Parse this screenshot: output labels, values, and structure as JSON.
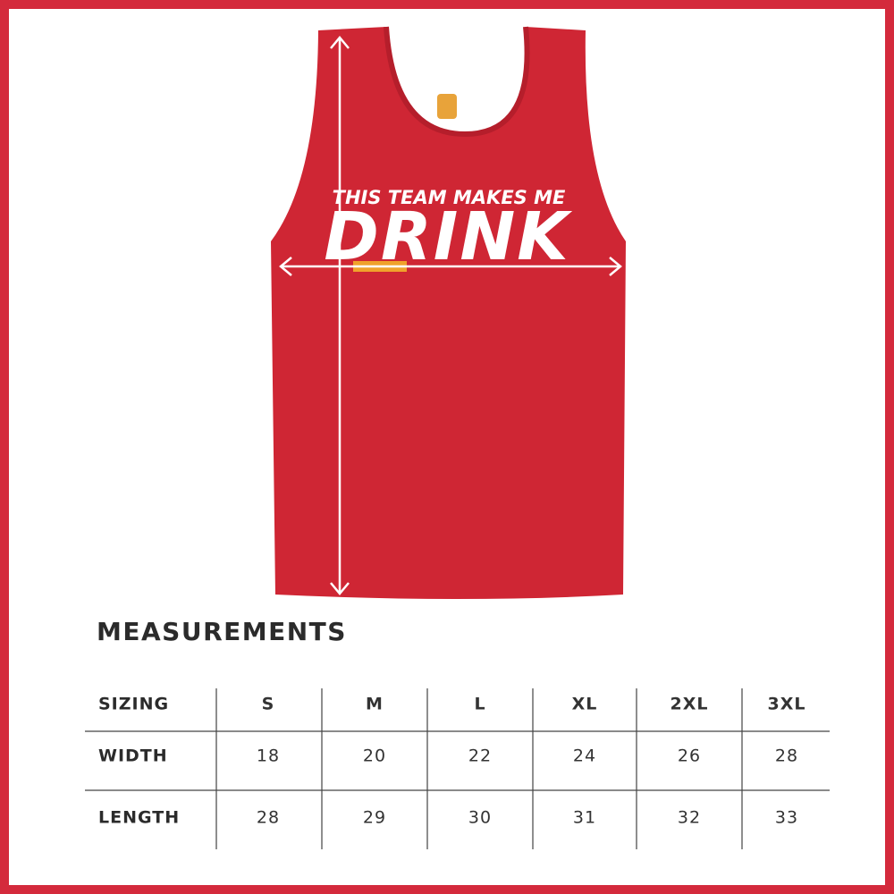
{
  "garment": {
    "print_line1": "THIS TEAM MAKES ME",
    "print_line2": "DRINK"
  },
  "heading": "MEASUREMENTS",
  "table": {
    "header": [
      "SIZING",
      "S",
      "M",
      "L",
      "XL",
      "2XL",
      "3XL"
    ],
    "rows": [
      [
        "WIDTH",
        "18",
        "20",
        "22",
        "24",
        "26",
        "28"
      ],
      [
        "LENGTH",
        "28",
        "29",
        "30",
        "31",
        "32",
        "33"
      ]
    ]
  }
}
